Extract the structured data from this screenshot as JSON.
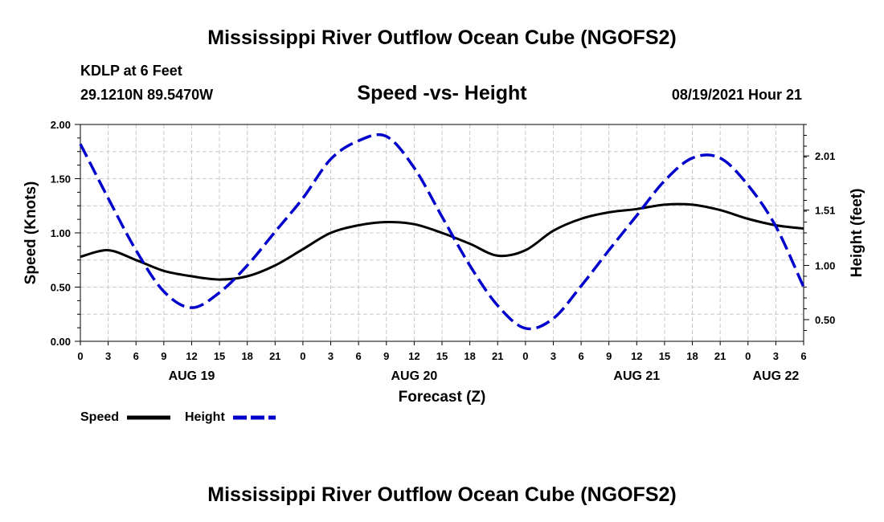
{
  "page": {
    "title_top": "Mississippi River Outflow Ocean Cube (NGOFS2)",
    "title_bottom": "Mississippi River Outflow Ocean Cube (NGOFS2)",
    "station": "KDLP at 6 Feet",
    "coords": "29.1210N  89.5470W",
    "subtitle": "Speed -vs- Height",
    "datetime": "08/19/2021 Hour 21"
  },
  "chart_data": {
    "type": "line",
    "title": "Speed -vs- Height",
    "xlabel": "Forecast (Z)",
    "ylabel_left": "Speed (Knots)",
    "ylabel_right": "Height (feet)",
    "x_range_hours": [
      0,
      78
    ],
    "x_tick_labels": [
      "0",
      "3",
      "6",
      "9",
      "12",
      "15",
      "18",
      "21",
      "0",
      "3",
      "6",
      "9",
      "12",
      "15",
      "18",
      "21",
      "0",
      "3",
      "6",
      "9",
      "12",
      "15",
      "18",
      "21",
      "0",
      "3",
      "6"
    ],
    "day_labels": [
      {
        "label": "AUG 19",
        "hour": 12
      },
      {
        "label": "AUG 20",
        "hour": 36
      },
      {
        "label": "AUG 21",
        "hour": 60
      },
      {
        "label": "AUG 22",
        "hour": 75
      }
    ],
    "y_left": {
      "min": 0,
      "max": 2,
      "ticks": [
        "0.00",
        "0.50",
        "1.00",
        "1.50",
        "2.00"
      ],
      "tick_values": [
        0,
        0.5,
        1.0,
        1.5,
        2.0
      ]
    },
    "y_right": {
      "min": 0.3,
      "max": 2.3,
      "ticks": [
        "0.50",
        "1.00",
        "1.51",
        "2.01"
      ],
      "tick_values": [
        0.5,
        1.0,
        1.51,
        2.01
      ]
    },
    "grid": true,
    "series": [
      {
        "name": "Speed",
        "axis": "left",
        "color": "#000000",
        "dash": "solid",
        "x": [
          0,
          3,
          6,
          9,
          12,
          15,
          18,
          21,
          24,
          27,
          30,
          33,
          36,
          39,
          42,
          45,
          48,
          51,
          54,
          57,
          60,
          63,
          66,
          69,
          72,
          75,
          78
        ],
        "values": [
          0.78,
          0.84,
          0.75,
          0.65,
          0.6,
          0.57,
          0.6,
          0.7,
          0.85,
          1.0,
          1.07,
          1.1,
          1.08,
          1.0,
          0.9,
          0.79,
          0.84,
          1.02,
          1.13,
          1.19,
          1.22,
          1.26,
          1.26,
          1.21,
          1.13,
          1.07,
          1.04
        ]
      },
      {
        "name": "Height",
        "axis": "right",
        "color": "#0000cc",
        "dash": "dashed",
        "x": [
          0,
          3,
          6,
          9,
          12,
          15,
          18,
          21,
          24,
          27,
          30,
          33,
          36,
          39,
          42,
          45,
          48,
          51,
          54,
          57,
          60,
          63,
          66,
          69,
          72,
          75,
          78
        ],
        "values": [
          2.12,
          1.62,
          1.14,
          0.76,
          0.61,
          0.75,
          1.0,
          1.31,
          1.62,
          1.98,
          2.15,
          2.19,
          1.9,
          1.45,
          1.0,
          0.63,
          0.42,
          0.51,
          0.81,
          1.14,
          1.46,
          1.78,
          1.99,
          1.99,
          1.74,
          1.36,
          0.8
        ]
      }
    ],
    "legend": [
      {
        "label": "Speed",
        "color": "#000000",
        "dash": "solid"
      },
      {
        "label": "Height",
        "color": "#0000cc",
        "dash": "dashed"
      }
    ],
    "legend_position": "bottom-left"
  }
}
